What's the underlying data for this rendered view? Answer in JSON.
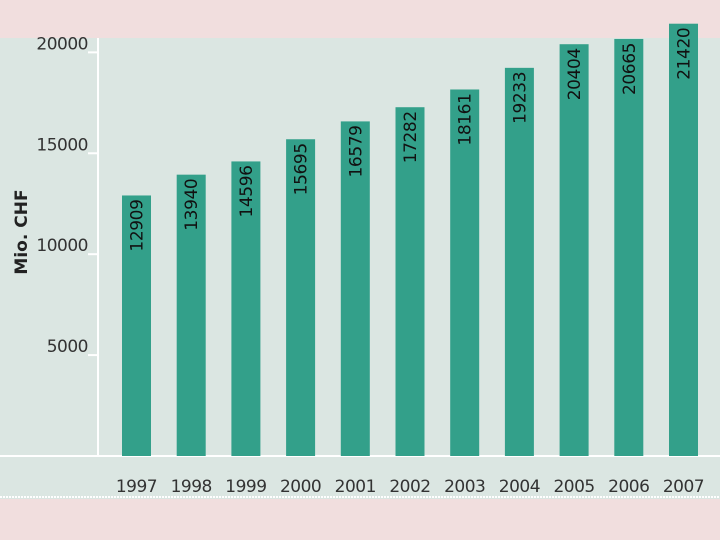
{
  "colors": {
    "background": "#f1dede",
    "panel": "#dbe6e2",
    "bar": "#33a08a",
    "axis": "#ffffff"
  },
  "chart_data": {
    "type": "bar",
    "title": "",
    "xlabel": "",
    "ylabel": "Mio. CHF",
    "ylim": [
      0,
      22000
    ],
    "yticks": [
      5000,
      10000,
      15000,
      20000
    ],
    "ytick_labels": [
      "5000",
      "10000",
      "15000",
      "20000"
    ],
    "categories": [
      "1997",
      "1998",
      "1999",
      "2000",
      "2001",
      "2002",
      "2003",
      "2004",
      "2005",
      "2006",
      "2007"
    ],
    "values": [
      12909,
      13940,
      14596,
      15695,
      16579,
      17282,
      18161,
      19233,
      20404,
      20665,
      21420
    ],
    "data_labels": [
      "12909",
      "13940",
      "14596",
      "15695",
      "16579",
      "17282",
      "18161",
      "19233",
      "20404",
      "20665",
      "21420"
    ],
    "grid": false,
    "legend": "none"
  }
}
